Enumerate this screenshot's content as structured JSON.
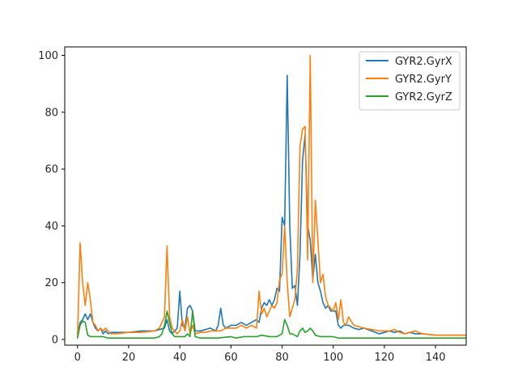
{
  "chart_data": {
    "type": "line",
    "title": "",
    "xlabel": "",
    "ylabel": "",
    "xlim": [
      -5,
      152
    ],
    "ylim": [
      -2,
      103
    ],
    "xticks": [
      0,
      20,
      40,
      60,
      80,
      100,
      120,
      140
    ],
    "yticks": [
      0,
      20,
      40,
      60,
      80,
      100
    ],
    "grid": false,
    "legend_position": "top-right",
    "series": [
      {
        "name": "GYR2.GyrX",
        "color": "#1f77b4",
        "points": [
          [
            0,
            2
          ],
          [
            1,
            6
          ],
          [
            2,
            7
          ],
          [
            3,
            9
          ],
          [
            4,
            7
          ],
          [
            5,
            9
          ],
          [
            6,
            6
          ],
          [
            7,
            4
          ],
          [
            8,
            3
          ],
          [
            9,
            4
          ],
          [
            10,
            2
          ],
          [
            11,
            3
          ],
          [
            12,
            2
          ],
          [
            13,
            2.5
          ],
          [
            15,
            2.5
          ],
          [
            20,
            2.5
          ],
          [
            25,
            3
          ],
          [
            30,
            3
          ],
          [
            32,
            3.5
          ],
          [
            34,
            4
          ],
          [
            35,
            7
          ],
          [
            36,
            3
          ],
          [
            37,
            2
          ],
          [
            38,
            3
          ],
          [
            39,
            4
          ],
          [
            40,
            17
          ],
          [
            41,
            5
          ],
          [
            42,
            4
          ],
          [
            43,
            11
          ],
          [
            44,
            12
          ],
          [
            45,
            10
          ],
          [
            46,
            3
          ],
          [
            48,
            3
          ],
          [
            50,
            3.5
          ],
          [
            52,
            4
          ],
          [
            54,
            3
          ],
          [
            55,
            5
          ],
          [
            56,
            11
          ],
          [
            57,
            5
          ],
          [
            58,
            4
          ],
          [
            60,
            5
          ],
          [
            62,
            5
          ],
          [
            64,
            6
          ],
          [
            66,
            5
          ],
          [
            68,
            6
          ],
          [
            70,
            7
          ],
          [
            71,
            6
          ],
          [
            72,
            11
          ],
          [
            73,
            13
          ],
          [
            74,
            12
          ],
          [
            75,
            14
          ],
          [
            76,
            12
          ],
          [
            77,
            14
          ],
          [
            78,
            18
          ],
          [
            79,
            17
          ],
          [
            80,
            43
          ],
          [
            81,
            40
          ],
          [
            82,
            93
          ],
          [
            83,
            40
          ],
          [
            84,
            18
          ],
          [
            85,
            19
          ],
          [
            86,
            12
          ],
          [
            87,
            30
          ],
          [
            88,
            63
          ],
          [
            89,
            72
          ],
          [
            90,
            40
          ],
          [
            91,
            35
          ],
          [
            92,
            21
          ],
          [
            93,
            30
          ],
          [
            94,
            20
          ],
          [
            95,
            17
          ],
          [
            96,
            13
          ],
          [
            97,
            11
          ],
          [
            98,
            12
          ],
          [
            99,
            10
          ],
          [
            100,
            10
          ],
          [
            101,
            10
          ],
          [
            102,
            5
          ],
          [
            103,
            4
          ],
          [
            104,
            5
          ],
          [
            106,
            5
          ],
          [
            108,
            4
          ],
          [
            110,
            3.5
          ],
          [
            112,
            4
          ],
          [
            115,
            3
          ],
          [
            118,
            2
          ],
          [
            120,
            2.5
          ],
          [
            122,
            3
          ],
          [
            124,
            2.5
          ],
          [
            126,
            3
          ],
          [
            128,
            2
          ],
          [
            130,
            2.5
          ],
          [
            132,
            2
          ],
          [
            135,
            2
          ],
          [
            140,
            1.5
          ],
          [
            145,
            1.5
          ],
          [
            150,
            1.5
          ],
          [
            152,
            1.5
          ]
        ]
      },
      {
        "name": "GYR2.GyrY",
        "color": "#ff7f0e",
        "points": [
          [
            0,
            1
          ],
          [
            1,
            34
          ],
          [
            2,
            20
          ],
          [
            3,
            12
          ],
          [
            4,
            20
          ],
          [
            5,
            14
          ],
          [
            6,
            6
          ],
          [
            7,
            5
          ],
          [
            8,
            3
          ],
          [
            9,
            4
          ],
          [
            10,
            3
          ],
          [
            11,
            4
          ],
          [
            12,
            3
          ],
          [
            13,
            2
          ],
          [
            15,
            2
          ],
          [
            20,
            2.5
          ],
          [
            25,
            2.5
          ],
          [
            30,
            3
          ],
          [
            32,
            4
          ],
          [
            33,
            6
          ],
          [
            34,
            8
          ],
          [
            35,
            33
          ],
          [
            36,
            8
          ],
          [
            37,
            4
          ],
          [
            38,
            3
          ],
          [
            39,
            2
          ],
          [
            40,
            3
          ],
          [
            41,
            7
          ],
          [
            42,
            3
          ],
          [
            43,
            8
          ],
          [
            44,
            2
          ],
          [
            45,
            5
          ],
          [
            46,
            2
          ],
          [
            48,
            2.5
          ],
          [
            50,
            2.5
          ],
          [
            52,
            3
          ],
          [
            54,
            3
          ],
          [
            56,
            3
          ],
          [
            58,
            4
          ],
          [
            60,
            4
          ],
          [
            62,
            4
          ],
          [
            64,
            5
          ],
          [
            66,
            4
          ],
          [
            68,
            5
          ],
          [
            70,
            4
          ],
          [
            71,
            17
          ],
          [
            72,
            9
          ],
          [
            73,
            11
          ],
          [
            74,
            8
          ],
          [
            75,
            10
          ],
          [
            76,
            12
          ],
          [
            77,
            11
          ],
          [
            78,
            13
          ],
          [
            79,
            21
          ],
          [
            80,
            23
          ],
          [
            81,
            40
          ],
          [
            82,
            20
          ],
          [
            83,
            8
          ],
          [
            84,
            11
          ],
          [
            85,
            14
          ],
          [
            86,
            25
          ],
          [
            87,
            68
          ],
          [
            88,
            74
          ],
          [
            89,
            75
          ],
          [
            90,
            28
          ],
          [
            91,
            100
          ],
          [
            92,
            20
          ],
          [
            93,
            49
          ],
          [
            94,
            35
          ],
          [
            95,
            20
          ],
          [
            96,
            23
          ],
          [
            97,
            15
          ],
          [
            98,
            12
          ],
          [
            99,
            11
          ],
          [
            100,
            10
          ],
          [
            101,
            13
          ],
          [
            102,
            7
          ],
          [
            103,
            14
          ],
          [
            104,
            6
          ],
          [
            105,
            5
          ],
          [
            106,
            8
          ],
          [
            108,
            5
          ],
          [
            110,
            4.5
          ],
          [
            112,
            4
          ],
          [
            115,
            3.5
          ],
          [
            118,
            3
          ],
          [
            120,
            3
          ],
          [
            122,
            3
          ],
          [
            124,
            3.5
          ],
          [
            126,
            2.5
          ],
          [
            128,
            2
          ],
          [
            130,
            2.5
          ],
          [
            132,
            3
          ],
          [
            135,
            2
          ],
          [
            140,
            1.5
          ],
          [
            145,
            1.5
          ],
          [
            150,
            1.5
          ],
          [
            152,
            1.5
          ]
        ]
      },
      {
        "name": "GYR2.GyrZ",
        "color": "#2ca02c",
        "points": [
          [
            0,
            0.5
          ],
          [
            1,
            5
          ],
          [
            2,
            6.5
          ],
          [
            3,
            6
          ],
          [
            4,
            1.5
          ],
          [
            5,
            1
          ],
          [
            8,
            1
          ],
          [
            10,
            1
          ],
          [
            12,
            0.5
          ],
          [
            15,
            0.5
          ],
          [
            20,
            0.5
          ],
          [
            25,
            0.5
          ],
          [
            30,
            0.5
          ],
          [
            32,
            1
          ],
          [
            33,
            2
          ],
          [
            34,
            5
          ],
          [
            35,
            10
          ],
          [
            36,
            6
          ],
          [
            37,
            2
          ],
          [
            38,
            1
          ],
          [
            40,
            1
          ],
          [
            42,
            1
          ],
          [
            43,
            2
          ],
          [
            44,
            1
          ],
          [
            45,
            10
          ],
          [
            46,
            1
          ],
          [
            48,
            0.5
          ],
          [
            50,
            0.5
          ],
          [
            55,
            0.5
          ],
          [
            60,
            1
          ],
          [
            62,
            0.5
          ],
          [
            65,
            1
          ],
          [
            70,
            1
          ],
          [
            72,
            1.5
          ],
          [
            75,
            1
          ],
          [
            78,
            1
          ],
          [
            80,
            2
          ],
          [
            81,
            7
          ],
          [
            82,
            5
          ],
          [
            83,
            2
          ],
          [
            84,
            2
          ],
          [
            85,
            1.5
          ],
          [
            86,
            1
          ],
          [
            87,
            3
          ],
          [
            88,
            4
          ],
          [
            89,
            2.5
          ],
          [
            90,
            3
          ],
          [
            91,
            4
          ],
          [
            92,
            3
          ],
          [
            93,
            1.5
          ],
          [
            95,
            1
          ],
          [
            97,
            1
          ],
          [
            100,
            1
          ],
          [
            102,
            0.5
          ],
          [
            105,
            0.5
          ],
          [
            110,
            0.5
          ],
          [
            120,
            0.5
          ],
          [
            130,
            0.5
          ],
          [
            140,
            0.5
          ],
          [
            150,
            0.5
          ],
          [
            152,
            0.5
          ]
        ]
      }
    ]
  }
}
